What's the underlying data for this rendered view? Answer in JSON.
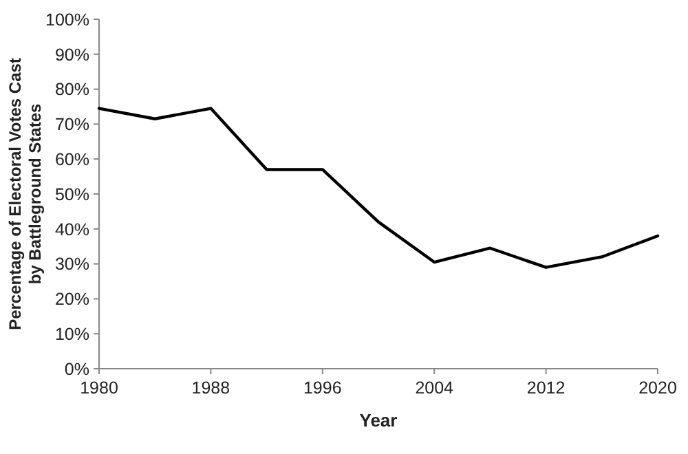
{
  "chart_data": {
    "type": "line",
    "xlabel": "Year",
    "ylabel": "Percentage of Electoral Votes Cast by Battleground States",
    "x": [
      1980,
      1984,
      1988,
      1992,
      1996,
      2000,
      2004,
      2008,
      2012,
      2016,
      2020
    ],
    "series": [
      {
        "color": "#000000",
        "values": [
          74.5,
          71.5,
          74.5,
          57,
          57,
          42,
          30.5,
          34.5,
          29,
          32,
          38
        ]
      }
    ],
    "xlim": [
      1980,
      2020
    ],
    "xticks": [
      1980,
      1988,
      1996,
      2004,
      2012,
      2020
    ],
    "ylim": [
      0,
      100
    ],
    "yticks": [
      {
        "value": 0,
        "label": "0%"
      },
      {
        "value": 10,
        "label": "10%"
      },
      {
        "value": 20,
        "label": "20%"
      },
      {
        "value": 30,
        "label": "30%"
      },
      {
        "value": 40,
        "label": "40%"
      },
      {
        "value": 50,
        "label": "50%"
      },
      {
        "value": 60,
        "label": "60%"
      },
      {
        "value": 70,
        "label": "70%"
      },
      {
        "value": 80,
        "label": "80%"
      },
      {
        "value": 90,
        "label": "90%"
      },
      {
        "value": 100,
        "label": "100%"
      }
    ],
    "grid": false,
    "marker": "none",
    "line_style": "solid"
  }
}
